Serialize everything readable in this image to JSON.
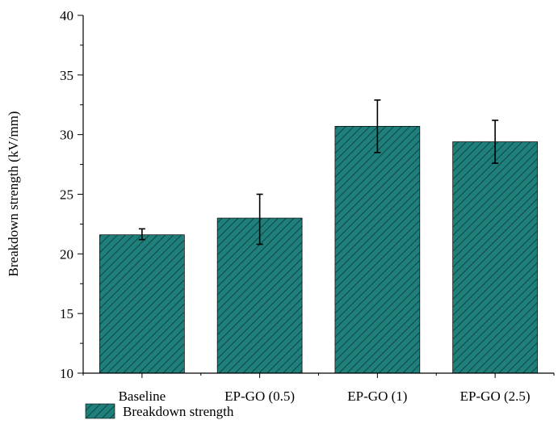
{
  "chart_data": {
    "type": "bar",
    "categories": [
      "Baseline",
      "EP-GO (0.5)",
      "EP-GO (1)",
      "EP-GO (2.5)"
    ],
    "series": [
      {
        "name": "Breakdown strength",
        "values": [
          21.6,
          23.0,
          30.7,
          29.4
        ],
        "error_low": [
          21.2,
          20.8,
          28.5,
          27.6
        ],
        "error_high": [
          22.1,
          25.0,
          32.9,
          31.2
        ]
      }
    ],
    "xlabel": "",
    "ylabel": "Breakdown strength (kV/mm)",
    "ylim": [
      10,
      40
    ],
    "yticks": [
      10,
      15,
      20,
      25,
      30,
      35,
      40
    ],
    "grid": false,
    "legend_position": "bottom-left",
    "bar_color": "#1f7f7b",
    "hatch_color": "#0f4543",
    "edge_color": "#000000"
  }
}
